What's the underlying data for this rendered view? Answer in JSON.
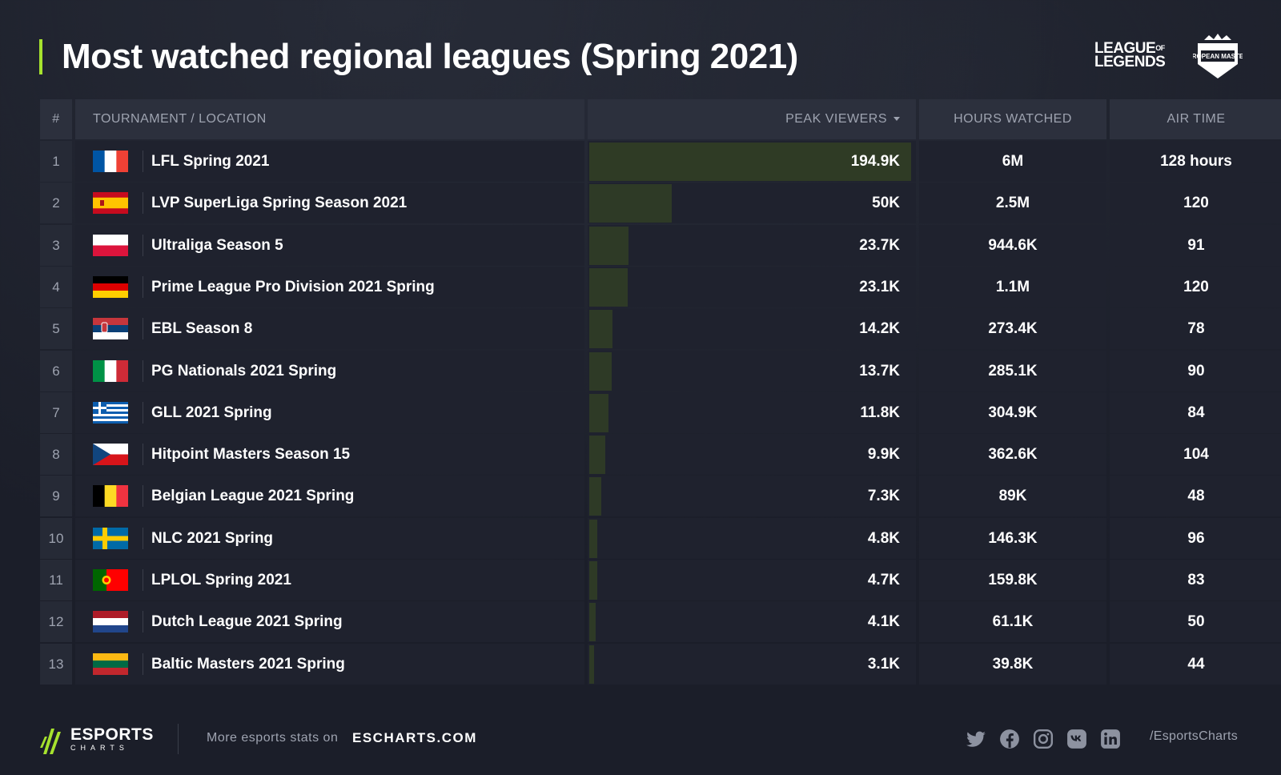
{
  "title": "Most watched regional leagues (Spring 2021)",
  "logos": {
    "lol_line1": "LEAGUE",
    "lol_of": "OF",
    "lol_line2": "LEGENDS",
    "em_label": "EUROPEAN MASTERS"
  },
  "accent": "#a6e22e",
  "header": {
    "num": "#",
    "name": "TOURNAMENT / LOCATION",
    "peak": "PEAK VIEWERS",
    "hours": "HOURS WATCHED",
    "air": "AIR TIME"
  },
  "rows": [
    {
      "num": "1",
      "flag": "france",
      "name": "LFL Spring 2021",
      "peak": "194.9K",
      "peak_value": 194900,
      "hours": "6M",
      "air": "128 hours"
    },
    {
      "num": "2",
      "flag": "spain",
      "name": "LVP SuperLiga Spring Season 2021",
      "peak": "50K",
      "peak_value": 50000,
      "hours": "2.5M",
      "air": "120"
    },
    {
      "num": "3",
      "flag": "poland",
      "name": "Ultraliga Season 5",
      "peak": "23.7K",
      "peak_value": 23700,
      "hours": "944.6K",
      "air": "91"
    },
    {
      "num": "4",
      "flag": "germany",
      "name": "Prime League Pro Division 2021 Spring",
      "peak": "23.1K",
      "peak_value": 23100,
      "hours": "1.1M",
      "air": "120"
    },
    {
      "num": "5",
      "flag": "serbia",
      "name": "EBL Season 8",
      "peak": "14.2K",
      "peak_value": 14200,
      "hours": "273.4K",
      "air": "78"
    },
    {
      "num": "6",
      "flag": "italy",
      "name": "PG Nationals 2021 Spring",
      "peak": "13.7K",
      "peak_value": 13700,
      "hours": "285.1K",
      "air": "90"
    },
    {
      "num": "7",
      "flag": "greece",
      "name": "GLL 2021 Spring",
      "peak": "11.8K",
      "peak_value": 11800,
      "hours": "304.9K",
      "air": "84"
    },
    {
      "num": "8",
      "flag": "czechia",
      "name": "Hitpoint Masters Season 15",
      "peak": "9.9K",
      "peak_value": 9900,
      "hours": "362.6K",
      "air": "104"
    },
    {
      "num": "9",
      "flag": "belgium",
      "name": "Belgian League 2021 Spring",
      "peak": "7.3K",
      "peak_value": 7300,
      "hours": "89K",
      "air": "48"
    },
    {
      "num": "10",
      "flag": "sweden",
      "name": "NLC 2021 Spring",
      "peak": "4.8K",
      "peak_value": 4800,
      "hours": "146.3K",
      "air": "96"
    },
    {
      "num": "11",
      "flag": "portugal",
      "name": "LPLOL Spring 2021",
      "peak": "4.7K",
      "peak_value": 4700,
      "hours": "159.8K",
      "air": "83"
    },
    {
      "num": "12",
      "flag": "netherlands",
      "name": "Dutch League 2021 Spring",
      "peak": "4.1K",
      "peak_value": 4100,
      "hours": "61.1K",
      "air": "50"
    },
    {
      "num": "13",
      "flag": "lithuania",
      "name": "Baltic Masters 2021 Spring",
      "peak": "3.1K",
      "peak_value": 3100,
      "hours": "39.8K",
      "air": "44"
    }
  ],
  "footer": {
    "brand": "ESPORTS",
    "brand_sub": "CHARTS",
    "more": "More esports stats on",
    "site": "ESCHARTS.COM",
    "socials": [
      "twitter-icon",
      "facebook-icon",
      "instagram-icon",
      "vk-icon",
      "linkedin-icon"
    ],
    "handle": "/EsportsCharts"
  }
}
